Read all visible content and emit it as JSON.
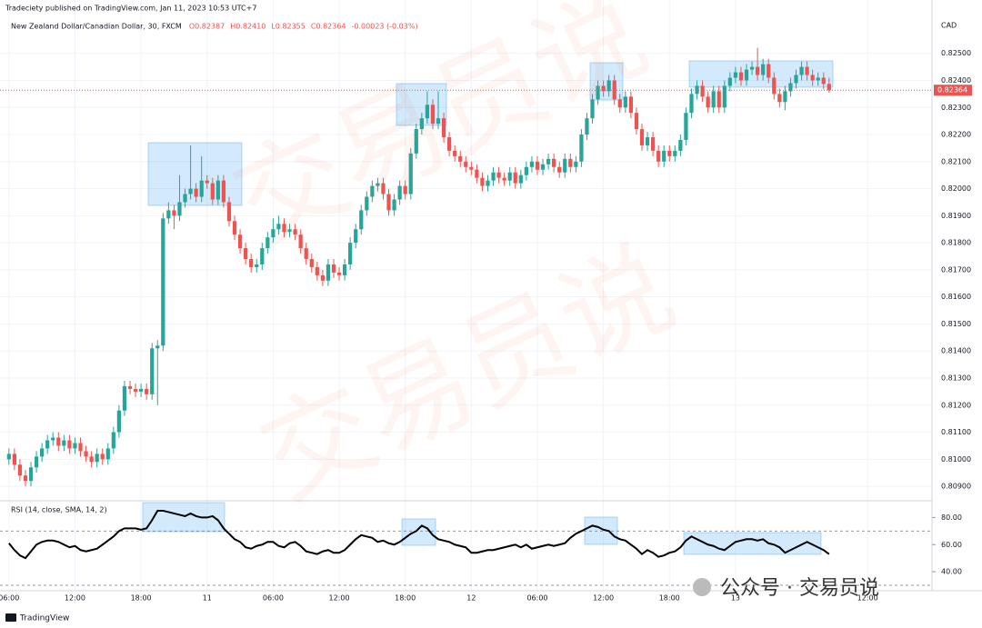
{
  "header": {
    "publisher": "Tradeciety published on TradingView.com, Jan 11, 2023 10:53 UTC+7",
    "watermark": "交易员说",
    "wechat_label": "公众号 · 交易员说",
    "footer": "TradingView"
  },
  "chart_data": {
    "type": "candlestick",
    "title": "New Zealand Dollar/Canadian Dollar, 30, FXCM",
    "legend_values": [
      "O0.82387",
      "H0.82410",
      "L0.82355",
      "C0.82364",
      "-0.00023 (-0.03%)"
    ],
    "currency": "CAD",
    "up_color": "#26a69a",
    "down_color": "#ef5350",
    "grid": true,
    "xlim": [
      -0.3,
      167.2
    ],
    "xticks": [
      {
        "value": 0,
        "label": "06:00"
      },
      {
        "value": 12,
        "label": "12:00"
      },
      {
        "value": 24,
        "label": "18:00"
      },
      {
        "value": 36,
        "label": "11"
      },
      {
        "value": 48,
        "label": "06:00"
      },
      {
        "value": 60,
        "label": "12:00"
      },
      {
        "value": 72,
        "label": "18:00"
      },
      {
        "value": 84,
        "label": "12"
      },
      {
        "value": 96,
        "label": "06:00"
      },
      {
        "value": 108,
        "label": "12:00"
      },
      {
        "value": 120,
        "label": "18:00"
      },
      {
        "value": 132,
        "label": "13"
      },
      {
        "value": 156,
        "label": "12:00"
      }
    ],
    "ylim": [
      0.8085,
      0.8263
    ],
    "yticks": [
      {
        "value": 0.809,
        "label": "0.80900"
      },
      {
        "value": 0.81,
        "label": "0.81000"
      },
      {
        "value": 0.811,
        "label": "0.81100"
      },
      {
        "value": 0.812,
        "label": "0.81200"
      },
      {
        "value": 0.813,
        "label": "0.81300"
      },
      {
        "value": 0.814,
        "label": "0.81400"
      },
      {
        "value": 0.815,
        "label": "0.81500"
      },
      {
        "value": 0.816,
        "label": "0.81600"
      },
      {
        "value": 0.817,
        "label": "0.81700"
      },
      {
        "value": 0.818,
        "label": "0.81800"
      },
      {
        "value": 0.819,
        "label": "0.81900"
      },
      {
        "value": 0.82,
        "label": "0.82000"
      },
      {
        "value": 0.821,
        "label": "0.82100"
      },
      {
        "value": 0.822,
        "label": "0.82200"
      },
      {
        "value": 0.823,
        "label": "0.82300"
      },
      {
        "value": 0.824,
        "label": "0.82400"
      },
      {
        "value": 0.825,
        "label": "0.82500"
      }
    ],
    "open": [
      0.81,
      0.8102,
      0.8098,
      0.8094,
      0.8092,
      0.8097,
      0.8101,
      0.8104,
      0.8107,
      0.8108,
      0.8105,
      0.8107,
      0.8104,
      0.8106,
      0.8103,
      0.8101,
      0.8099,
      0.8102,
      0.81,
      0.8104,
      0.811,
      0.8118,
      0.8127,
      0.8126,
      0.8125,
      0.8126,
      0.8124,
      0.8141,
      0.8142,
      0.8189,
      0.8192,
      0.819,
      0.8195,
      0.8198,
      0.82,
      0.8197,
      0.8203,
      0.8202,
      0.8196,
      0.8203,
      0.8195,
      0.8188,
      0.8183,
      0.8178,
      0.8174,
      0.8171,
      0.8172,
      0.8178,
      0.8182,
      0.8185,
      0.8187,
      0.8184,
      0.8185,
      0.8183,
      0.8178,
      0.8174,
      0.8171,
      0.8168,
      0.8166,
      0.8172,
      0.8169,
      0.8168,
      0.8172,
      0.818,
      0.8185,
      0.8192,
      0.8197,
      0.8201,
      0.8202,
      0.8198,
      0.8192,
      0.8196,
      0.8201,
      0.8198,
      0.8213,
      0.8222,
      0.8226,
      0.8231,
      0.8224,
      0.8226,
      0.8219,
      0.8214,
      0.8212,
      0.821,
      0.8208,
      0.8207,
      0.8204,
      0.8201,
      0.8203,
      0.8206,
      0.8204,
      0.8203,
      0.8206,
      0.8202,
      0.8205,
      0.8208,
      0.821,
      0.8207,
      0.8209,
      0.8211,
      0.8208,
      0.8206,
      0.8211,
      0.8208,
      0.821,
      0.822,
      0.8226,
      0.8233,
      0.8238,
      0.8236,
      0.824,
      0.8233,
      0.823,
      0.8234,
      0.8228,
      0.8222,
      0.8216,
      0.8219,
      0.8214,
      0.821,
      0.8214,
      0.8212,
      0.8214,
      0.8218,
      0.8228,
      0.8235,
      0.8238,
      0.8234,
      0.823,
      0.8236,
      0.823,
      0.8238,
      0.8241,
      0.8243,
      0.824,
      0.8244,
      0.8245,
      0.8242,
      0.8246,
      0.8241,
      0.8235,
      0.8232,
      0.8236,
      0.8239,
      0.8242,
      0.8245,
      0.8242,
      0.824,
      0.8241,
      0.82387
    ],
    "high": [
      0.8104,
      0.8104,
      0.81,
      0.8096,
      0.8099,
      0.8103,
      0.8106,
      0.8109,
      0.811,
      0.811,
      0.8109,
      0.8109,
      0.8108,
      0.8108,
      0.8105,
      0.8103,
      0.8104,
      0.8104,
      0.8106,
      0.8112,
      0.812,
      0.8129,
      0.8129,
      0.8128,
      0.8128,
      0.8128,
      0.8143,
      0.8144,
      0.8191,
      0.8195,
      0.8194,
      0.8205,
      0.82,
      0.8216,
      0.8202,
      0.8212,
      0.8205,
      0.8204,
      0.8205,
      0.8205,
      0.8197,
      0.819,
      0.8185,
      0.818,
      0.8176,
      0.8174,
      0.818,
      0.8184,
      0.8189,
      0.819,
      0.8189,
      0.8187,
      0.8187,
      0.8185,
      0.818,
      0.8176,
      0.8173,
      0.817,
      0.8174,
      0.8174,
      0.8171,
      0.8174,
      0.8182,
      0.8187,
      0.8194,
      0.8199,
      0.8203,
      0.8204,
      0.8204,
      0.82,
      0.8198,
      0.8203,
      0.8203,
      0.8215,
      0.8224,
      0.8228,
      0.8236,
      0.8233,
      0.8236,
      0.8228,
      0.8221,
      0.8216,
      0.8214,
      0.8212,
      0.821,
      0.8209,
      0.8206,
      0.8205,
      0.8208,
      0.8208,
      0.8206,
      0.8208,
      0.8208,
      0.8207,
      0.821,
      0.8212,
      0.8212,
      0.8211,
      0.8213,
      0.8213,
      0.821,
      0.8213,
      0.8213,
      0.8212,
      0.8222,
      0.8228,
      0.8235,
      0.824,
      0.824,
      0.8242,
      0.8242,
      0.8235,
      0.8236,
      0.8236,
      0.823,
      0.8224,
      0.8221,
      0.8221,
      0.8216,
      0.8216,
      0.8216,
      0.8216,
      0.822,
      0.823,
      0.8237,
      0.824,
      0.824,
      0.8236,
      0.8238,
      0.8238,
      0.824,
      0.8243,
      0.8245,
      0.8245,
      0.8246,
      0.8247,
      0.8252,
      0.8248,
      0.8248,
      0.8243,
      0.8237,
      0.8238,
      0.8241,
      0.8244,
      0.8247,
      0.8247,
      0.8244,
      0.8243,
      0.8243,
      0.8241
    ],
    "low": [
      0.8098,
      0.8096,
      0.8092,
      0.809,
      0.809,
      0.8095,
      0.8099,
      0.8102,
      0.8105,
      0.8103,
      0.8103,
      0.8102,
      0.8102,
      0.8101,
      0.8099,
      0.8097,
      0.8097,
      0.8098,
      0.8098,
      0.8102,
      0.8108,
      0.8116,
      0.8124,
      0.8123,
      0.8123,
      0.8122,
      0.8122,
      0.812,
      0.814,
      0.8187,
      0.8185,
      0.8188,
      0.8193,
      0.8196,
      0.8195,
      0.8195,
      0.82,
      0.8194,
      0.8194,
      0.8193,
      0.8186,
      0.8181,
      0.8176,
      0.8172,
      0.8169,
      0.8169,
      0.817,
      0.8176,
      0.818,
      0.8183,
      0.8182,
      0.8182,
      0.8181,
      0.8176,
      0.8172,
      0.8169,
      0.8166,
      0.8164,
      0.8164,
      0.8167,
      0.8166,
      0.8166,
      0.817,
      0.8178,
      0.8183,
      0.819,
      0.8195,
      0.8199,
      0.8196,
      0.819,
      0.819,
      0.8194,
      0.8196,
      0.8196,
      0.8211,
      0.822,
      0.8224,
      0.8222,
      0.8222,
      0.8217,
      0.8212,
      0.821,
      0.8208,
      0.8206,
      0.8205,
      0.8202,
      0.8199,
      0.8199,
      0.8201,
      0.8202,
      0.8201,
      0.8201,
      0.82,
      0.82,
      0.8203,
      0.8206,
      0.8205,
      0.8205,
      0.8207,
      0.8206,
      0.8204,
      0.8204,
      0.8206,
      0.8206,
      0.8208,
      0.8218,
      0.8224,
      0.8231,
      0.8234,
      0.8234,
      0.8231,
      0.8228,
      0.8228,
      0.8226,
      0.822,
      0.8214,
      0.8214,
      0.8212,
      0.8208,
      0.8208,
      0.821,
      0.821,
      0.8212,
      0.8216,
      0.8226,
      0.8233,
      0.8232,
      0.8228,
      0.8228,
      0.8228,
      0.8228,
      0.8236,
      0.8239,
      0.8238,
      0.8238,
      0.8242,
      0.824,
      0.824,
      0.8239,
      0.8233,
      0.823,
      0.8229,
      0.8234,
      0.8237,
      0.824,
      0.824,
      0.8238,
      0.8238,
      0.82367,
      0.82355
    ],
    "close": [
      0.8102,
      0.8098,
      0.8094,
      0.8092,
      0.8097,
      0.8101,
      0.8104,
      0.8107,
      0.8108,
      0.8105,
      0.8107,
      0.8104,
      0.8106,
      0.8103,
      0.8101,
      0.8099,
      0.8102,
      0.81,
      0.8104,
      0.811,
      0.8118,
      0.8127,
      0.8126,
      0.8125,
      0.8126,
      0.8124,
      0.8141,
      0.8142,
      0.8189,
      0.8192,
      0.819,
      0.8195,
      0.8198,
      0.82,
      0.8197,
      0.8203,
      0.8202,
      0.8196,
      0.8203,
      0.8195,
      0.8188,
      0.8183,
      0.8178,
      0.8174,
      0.8171,
      0.8172,
      0.8178,
      0.8182,
      0.8185,
      0.8187,
      0.8184,
      0.8185,
      0.8183,
      0.8178,
      0.8174,
      0.8171,
      0.8168,
      0.8166,
      0.8172,
      0.8169,
      0.8168,
      0.8172,
      0.818,
      0.8185,
      0.8192,
      0.8197,
      0.8201,
      0.8202,
      0.8198,
      0.8192,
      0.8196,
      0.8201,
      0.8198,
      0.8213,
      0.8222,
      0.8226,
      0.8231,
      0.8224,
      0.8226,
      0.8219,
      0.8214,
      0.8212,
      0.821,
      0.8208,
      0.8207,
      0.8204,
      0.8201,
      0.8203,
      0.8206,
      0.8204,
      0.8203,
      0.8206,
      0.8202,
      0.8205,
      0.8208,
      0.821,
      0.8207,
      0.8209,
      0.8211,
      0.8208,
      0.8206,
      0.8211,
      0.8208,
      0.821,
      0.822,
      0.8226,
      0.8233,
      0.8238,
      0.8236,
      0.824,
      0.8233,
      0.823,
      0.8234,
      0.8228,
      0.8222,
      0.8216,
      0.8219,
      0.8214,
      0.821,
      0.8214,
      0.8212,
      0.8214,
      0.8218,
      0.8228,
      0.8235,
      0.8238,
      0.8234,
      0.823,
      0.8236,
      0.823,
      0.8238,
      0.8241,
      0.8243,
      0.824,
      0.8244,
      0.8245,
      0.8242,
      0.8246,
      0.8241,
      0.8235,
      0.8232,
      0.8236,
      0.8239,
      0.8242,
      0.8245,
      0.8242,
      0.824,
      0.8241,
      0.82387,
      0.82364
    ],
    "rsi": {
      "title": "RSI (14, close, SMA, 14, 2)",
      "color": "#000000",
      "ylim": [
        26,
        91
      ],
      "bands": [
        30,
        70
      ],
      "yticks": [
        {
          "value": 40,
          "label": "40.00"
        },
        {
          "value": 60,
          "label": "60.00"
        },
        {
          "value": 80,
          "label": "80.00"
        }
      ],
      "values": [
        61,
        56,
        52,
        50,
        55,
        60,
        62,
        63,
        63,
        62,
        60,
        58,
        59,
        56,
        55,
        56,
        57,
        60,
        63,
        66,
        70,
        72,
        72,
        72,
        71,
        72,
        78,
        85,
        85,
        84,
        83,
        82,
        81,
        83,
        81,
        80,
        80,
        81,
        78,
        72,
        68,
        64,
        62,
        58,
        57,
        59,
        60,
        62,
        62,
        59,
        58,
        61,
        62,
        59,
        55,
        54,
        53,
        55,
        56,
        54,
        54,
        56,
        60,
        64,
        67,
        66,
        65,
        62,
        63,
        61,
        60,
        62,
        65,
        68,
        70,
        74,
        72,
        67,
        64,
        63,
        62,
        60,
        59,
        58,
        54,
        54,
        55,
        56,
        56,
        57,
        58,
        59,
        60,
        58,
        60,
        57,
        58,
        59,
        60,
        59,
        60,
        61,
        65,
        68,
        70,
        72,
        74,
        73,
        71,
        70,
        66,
        64,
        63,
        60,
        57,
        53,
        56,
        54,
        51,
        52,
        54,
        55,
        58,
        63,
        66,
        64,
        62,
        60,
        59,
        57,
        56,
        59,
        62,
        63,
        64,
        64,
        63,
        64,
        61,
        60,
        58,
        54,
        56,
        58,
        60,
        62,
        60,
        58,
        56,
        53
      ]
    }
  }
}
